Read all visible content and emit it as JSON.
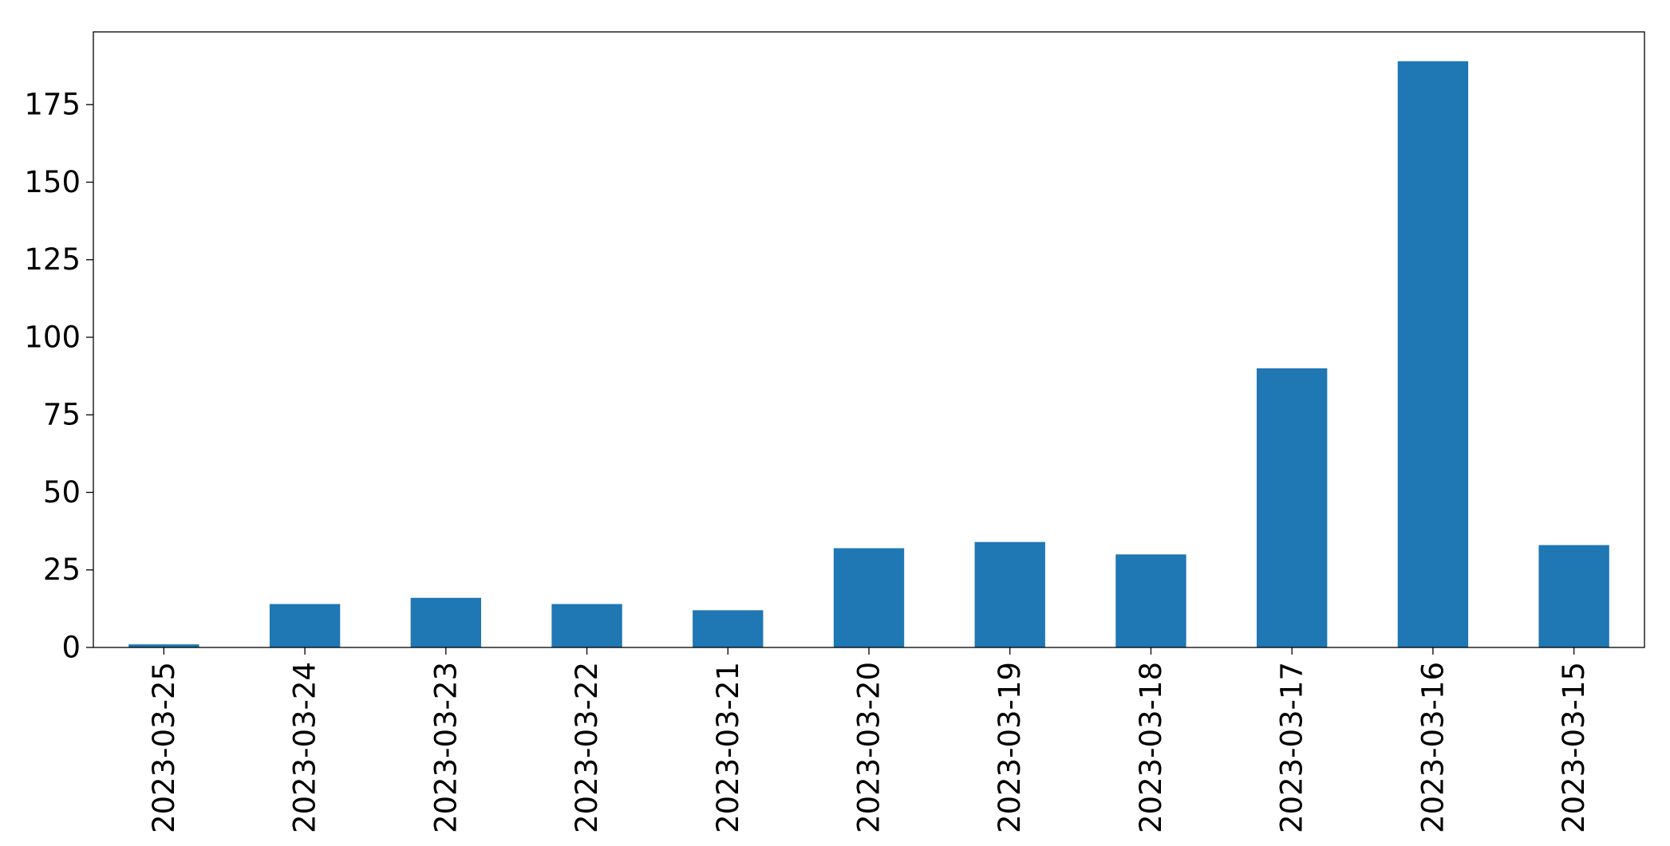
{
  "chart_data": {
    "type": "bar",
    "categories": [
      "2023-03-25",
      "2023-03-24",
      "2023-03-23",
      "2023-03-22",
      "2023-03-21",
      "2023-03-20",
      "2023-03-19",
      "2023-03-18",
      "2023-03-17",
      "2023-03-16",
      "2023-03-15"
    ],
    "values": [
      1,
      14,
      16,
      14,
      12,
      32,
      34,
      30,
      90,
      189,
      33
    ],
    "title": "",
    "xlabel": "",
    "ylabel": "",
    "ylim": [
      0,
      198.45
    ],
    "yticks": [
      0,
      25,
      50,
      75,
      100,
      125,
      150,
      175
    ],
    "grid": false,
    "legend": "none",
    "bar_color": "#1f77b4",
    "xtick_rotation": "vertical"
  }
}
